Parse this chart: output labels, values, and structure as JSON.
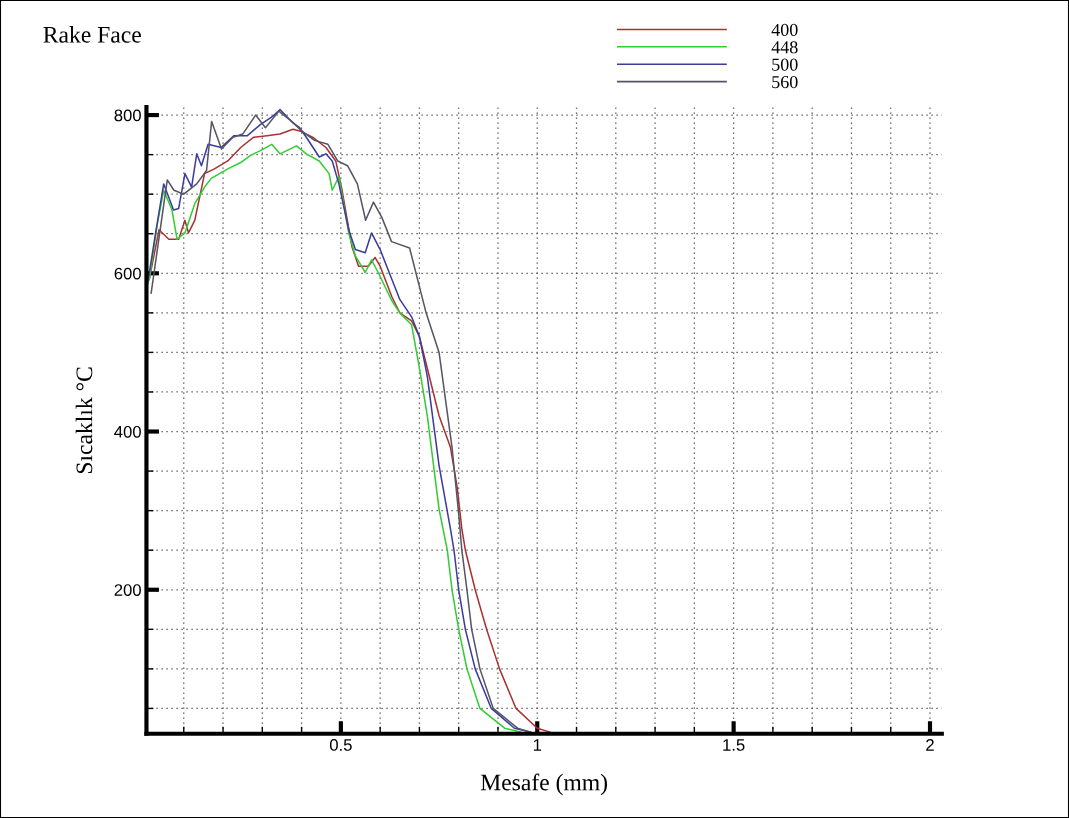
{
  "chart_data": {
    "type": "line",
    "title": "Rake Face",
    "xlabel": "Mesafe (mm)",
    "ylabel": "Sıcaklık °C",
    "xlim": [
      0.005,
      2.03
    ],
    "ylim": [
      18,
      810
    ],
    "xticks": [
      0.5,
      1,
      1.5,
      2
    ],
    "yticks": [
      200,
      400,
      600,
      800
    ],
    "grid": true,
    "legend": "top right",
    "line_style": "solid",
    "marker": "none",
    "series": [
      {
        "name": "400",
        "color": "#a83232",
        "x": [
          0.012,
          0.037,
          0.062,
          0.087,
          0.103,
          0.112,
          0.128,
          0.153,
          0.178,
          0.212,
          0.245,
          0.278,
          0.312,
          0.345,
          0.378,
          0.395,
          0.428,
          0.462,
          0.487,
          0.503,
          0.528,
          0.545,
          0.57,
          0.587,
          0.6,
          0.63,
          0.65,
          0.68,
          0.7,
          0.72,
          0.75,
          0.779,
          0.796,
          0.808,
          0.817,
          0.842,
          0.871,
          0.904,
          0.946,
          1.0,
          1.033
        ],
        "values": [
          592,
          655,
          643,
          643,
          667,
          651,
          667,
          726,
          732,
          742,
          759,
          772,
          774,
          776,
          782,
          780,
          772,
          759,
          742,
          705,
          634,
          609,
          609,
          620,
          609,
          570,
          550,
          540,
          520,
          480,
          420,
          380,
          330,
          277,
          250,
          200,
          150,
          100,
          50,
          25,
          20
        ]
      },
      {
        "name": "448",
        "color": "#33cc33",
        "x": [
          0.012,
          0.033,
          0.049,
          0.07,
          0.083,
          0.103,
          0.128,
          0.153,
          0.17,
          0.212,
          0.245,
          0.27,
          0.295,
          0.324,
          0.345,
          0.37,
          0.387,
          0.412,
          0.445,
          0.47,
          0.478,
          0.495,
          0.52,
          0.537,
          0.562,
          0.578,
          0.595,
          0.63,
          0.65,
          0.68,
          0.7,
          0.72,
          0.75,
          0.771,
          0.783,
          0.8,
          0.821,
          0.854,
          0.917,
          0.958
        ],
        "values": [
          592,
          663,
          705,
          680,
          643,
          651,
          688,
          709,
          720,
          732,
          740,
          749,
          755,
          763,
          751,
          757,
          761,
          751,
          742,
          726,
          705,
          722,
          651,
          622,
          601,
          617,
          601,
          565,
          550,
          535,
          480,
          420,
          302,
          250,
          200,
          150,
          100,
          50,
          25,
          20
        ]
      },
      {
        "name": "500",
        "color": "#3c3c9c",
        "x": [
          0.007,
          0.028,
          0.049,
          0.074,
          0.087,
          0.103,
          0.12,
          0.133,
          0.145,
          0.162,
          0.195,
          0.228,
          0.262,
          0.295,
          0.328,
          0.345,
          0.378,
          0.395,
          0.412,
          0.445,
          0.462,
          0.478,
          0.495,
          0.52,
          0.537,
          0.562,
          0.578,
          0.6,
          0.65,
          0.68,
          0.7,
          0.72,
          0.75,
          0.779,
          0.788,
          0.8,
          0.817,
          0.842,
          0.883,
          0.942,
          0.983
        ],
        "values": [
          584,
          650,
          713,
          680,
          682,
          726,
          709,
          751,
          736,
          763,
          759,
          774,
          774,
          788,
          799,
          807,
          790,
          784,
          772,
          747,
          751,
          742,
          713,
          655,
          630,
          626,
          651,
          630,
          567,
          545,
          520,
          470,
          357,
          277,
          250,
          200,
          150,
          100,
          50,
          25,
          20
        ]
      },
      {
        "name": "560",
        "color": "#555566",
        "x": [
          0.017,
          0.058,
          0.075,
          0.1,
          0.133,
          0.158,
          0.171,
          0.196,
          0.225,
          0.25,
          0.283,
          0.308,
          0.342,
          0.375,
          0.4,
          0.433,
          0.467,
          0.492,
          0.517,
          0.542,
          0.563,
          0.583,
          0.604,
          0.629,
          0.675,
          0.717,
          0.75,
          0.783,
          0.8,
          0.808,
          0.821,
          0.833,
          0.854,
          0.888,
          0.95,
          0.983
        ],
        "values": [
          575,
          718,
          705,
          700,
          713,
          730,
          792,
          757,
          772,
          776,
          800,
          784,
          805,
          792,
          780,
          768,
          763,
          742,
          736,
          713,
          667,
          690,
          671,
          640,
          632,
          550,
          500,
          380,
          296,
          250,
          200,
          150,
          100,
          50,
          25,
          20
        ]
      }
    ]
  }
}
